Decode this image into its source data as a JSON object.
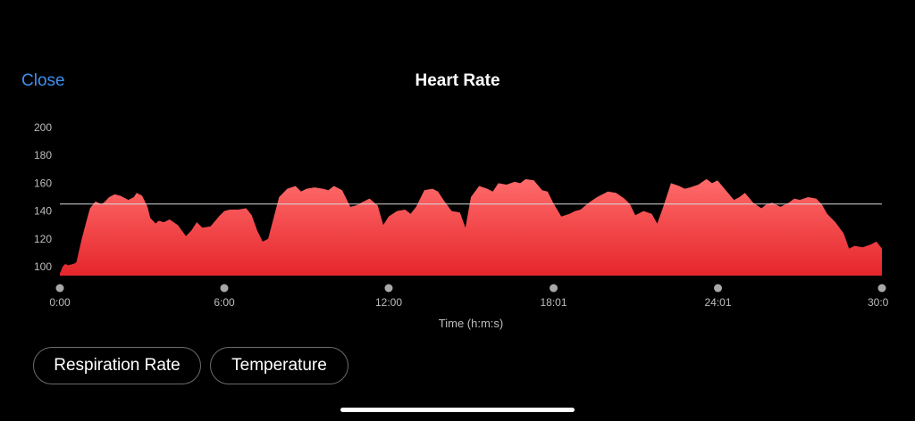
{
  "header": {
    "close_label": "Close",
    "title": "Heart Rate"
  },
  "buttons": {
    "respiration_label": "Respiration Rate",
    "temperature_label": "Temperature"
  },
  "colors": {
    "accent": "#3d8ff0",
    "area_top": "#ff6b6b",
    "area_bottom": "#e5262b",
    "average_line": "#d9d9d9",
    "background": "#000000"
  },
  "chart_data": {
    "type": "area",
    "title": "Heart Rate",
    "xlabel": "Time (h:m:s)",
    "ylabel": "",
    "ylim": [
      93,
      200
    ],
    "y_ticks": [
      100,
      120,
      140,
      160,
      180,
      200
    ],
    "y_tick_labels": [
      "100",
      "120",
      "140",
      "160",
      "180",
      "200"
    ],
    "x_ticks": [
      0,
      6,
      12,
      18.017,
      24.017,
      30
    ],
    "x_tick_labels": [
      "0:00",
      "6:00",
      "12:00",
      "18:01",
      "24:01",
      "30:0"
    ],
    "x_range": [
      0,
      30
    ],
    "average": 145,
    "grid": false,
    "series": [
      {
        "x": [
          0,
          0.1,
          0.2,
          0.3,
          0.5,
          0.6,
          0.8,
          1.0,
          1.1,
          1.3,
          1.5,
          1.6,
          1.8,
          2.0,
          2.2,
          2.5,
          2.7,
          2.8,
          3.0,
          3.2,
          3.3,
          3.5,
          3.6,
          3.8,
          4.0,
          4.3,
          4.6,
          4.8,
          5.0,
          5.2,
          5.5,
          5.8,
          6.0,
          6.2,
          6.5,
          6.8,
          7.0,
          7.2,
          7.4,
          7.6,
          7.8,
          8.0,
          8.3,
          8.6,
          8.8,
          9.0,
          9.3,
          9.6,
          9.8,
          10.0,
          10.3,
          10.6,
          10.8,
          11.0,
          11.3,
          11.6,
          11.8,
          12.0,
          12.3,
          12.6,
          12.8,
          13.0,
          13.3,
          13.6,
          13.8,
          14.0,
          14.3,
          14.6,
          14.8,
          15.0,
          15.3,
          15.6,
          15.8,
          16.0,
          16.3,
          16.6,
          16.8,
          17.0,
          17.3,
          17.6,
          17.8,
          18.0,
          18.3,
          18.6,
          18.8,
          19.0,
          19.3,
          19.6,
          19.8,
          20.0,
          20.3,
          20.6,
          20.8,
          21.0,
          21.3,
          21.6,
          21.8,
          22.0,
          22.3,
          22.6,
          22.8,
          23.0,
          23.3,
          23.6,
          23.8,
          24.0,
          24.3,
          24.6,
          24.8,
          25.0,
          25.3,
          25.6,
          25.8,
          26.0,
          26.3,
          26.6,
          26.8,
          27.0,
          27.3,
          27.6,
          27.8,
          28.0,
          28.3,
          28.6,
          28.8,
          29.0,
          29.3,
          29.6,
          29.8,
          30.0
        ],
        "values": [
          95,
          100,
          102,
          101,
          102,
          103,
          120,
          135,
          142,
          147,
          145,
          146,
          150,
          152,
          151,
          148,
          150,
          153,
          151,
          143,
          135,
          131,
          133,
          132,
          134,
          130,
          122,
          126,
          132,
          128,
          129,
          136,
          140,
          141,
          141,
          142,
          137,
          126,
          118,
          120,
          135,
          150,
          156,
          158,
          154,
          156,
          157,
          156,
          155,
          158,
          155,
          143,
          144,
          146,
          149,
          144,
          130,
          136,
          140,
          141,
          138,
          143,
          155,
          156,
          154,
          148,
          140,
          139,
          128,
          150,
          158,
          156,
          154,
          160,
          159,
          161,
          160,
          163,
          162,
          155,
          154,
          146,
          136,
          138,
          140,
          141,
          146,
          150,
          152,
          154,
          153,
          149,
          145,
          137,
          140,
          138,
          131,
          142,
          160,
          158,
          156,
          157,
          159,
          163,
          160,
          162,
          155,
          148,
          150,
          153,
          146,
          142,
          145,
          146,
          143,
          146,
          149,
          148,
          150,
          149,
          145,
          138,
          132,
          124,
          113,
          115,
          114,
          116,
          118,
          113
        ]
      }
    ]
  }
}
